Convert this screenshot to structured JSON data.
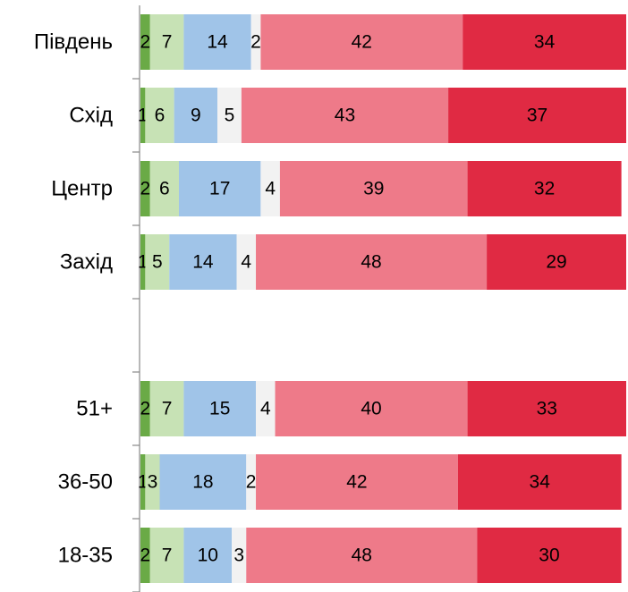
{
  "chart_data": {
    "type": "stacked-hbar",
    "categories": [
      "Південь",
      "Схід",
      "Центр",
      "Захід",
      null,
      "51+",
      "36-50",
      "18-35"
    ],
    "series": [
      {
        "color": "#6aaa46",
        "values": [
          2,
          1,
          2,
          1,
          null,
          2,
          1,
          2
        ]
      },
      {
        "color": "#c7e2b5",
        "values": [
          7,
          6,
          6,
          5,
          null,
          7,
          3,
          7
        ]
      },
      {
        "color": "#a0c4e8",
        "values": [
          14,
          9,
          17,
          14,
          null,
          15,
          18,
          10
        ]
      },
      {
        "color": "#f2f2f2",
        "values": [
          2,
          5,
          4,
          4,
          null,
          4,
          2,
          3
        ]
      },
      {
        "color": "#ee7a89",
        "values": [
          42,
          43,
          39,
          48,
          null,
          40,
          42,
          48
        ]
      },
      {
        "color": "#e02a43",
        "values": [
          34,
          37,
          32,
          29,
          null,
          33,
          34,
          30
        ]
      }
    ],
    "xlim": [
      0,
      101
    ]
  }
}
